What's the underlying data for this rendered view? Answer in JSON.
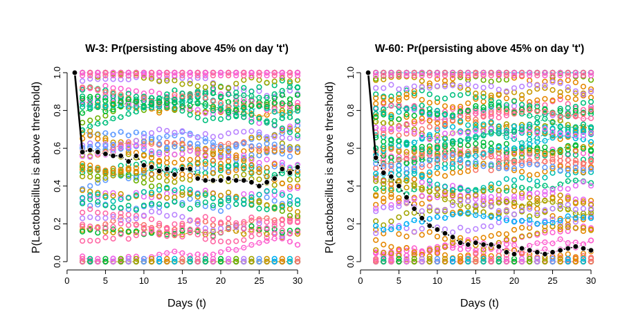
{
  "chart_data": [
    {
      "type": "scatter",
      "title": "W-3: Pr(persisting above 45% on day 't')",
      "xlabel": "Days (t)",
      "ylabel": "P(Lactobacillus is above threshold)",
      "xlim": [
        0,
        30
      ],
      "ylim": [
        0,
        1
      ],
      "xticks": [
        "0",
        "5",
        "10",
        "15",
        "20",
        "25",
        "30"
      ],
      "yticks": [
        "0.0",
        "0.2",
        "0.4",
        "0.6",
        "0.8",
        "1.0"
      ],
      "grid": false,
      "legend": "none",
      "highlight_series": {
        "x": [
          1,
          2,
          3,
          4,
          5,
          6,
          7,
          8,
          9,
          10,
          11,
          12,
          13,
          14,
          15,
          16,
          17,
          18,
          19,
          20,
          21,
          22,
          23,
          24,
          25,
          26,
          27,
          28,
          29,
          30
        ],
        "y": [
          1.0,
          0.58,
          0.59,
          0.58,
          0.57,
          0.56,
          0.56,
          0.53,
          0.56,
          0.51,
          0.5,
          0.48,
          0.49,
          0.46,
          0.49,
          0.49,
          0.44,
          0.43,
          0.43,
          0.43,
          0.44,
          0.43,
          0.43,
          0.42,
          0.4,
          0.42,
          0.44,
          0.49,
          0.47,
          0.5
        ]
      },
      "seed": 3
    },
    {
      "type": "scatter",
      "title": "W-60: Pr(persisting above 45% on day 't')",
      "xlabel": "Days (t)",
      "ylabel": "P(Lactobacillus is above threshold)",
      "xlim": [
        0,
        30
      ],
      "ylim": [
        0,
        1
      ],
      "xticks": [
        "0",
        "5",
        "10",
        "15",
        "20",
        "25",
        "30"
      ],
      "yticks": [
        "0.0",
        "0.2",
        "0.4",
        "0.6",
        "0.8",
        "1.0"
      ],
      "grid": false,
      "legend": "none",
      "highlight_series": {
        "x": [
          1,
          2,
          3,
          4,
          5,
          6,
          7,
          8,
          9,
          10,
          11,
          12,
          13,
          14,
          15,
          16,
          17,
          18,
          19,
          20,
          21,
          22,
          23,
          24,
          25,
          26,
          27,
          28,
          29,
          30
        ],
        "y": [
          1.0,
          0.55,
          0.47,
          0.45,
          0.4,
          0.34,
          0.28,
          0.23,
          0.19,
          0.17,
          0.15,
          0.13,
          0.1,
          0.09,
          0.1,
          0.09,
          0.09,
          0.08,
          0.05,
          0.04,
          0.07,
          0.06,
          0.05,
          0.04,
          0.05,
          0.06,
          0.07,
          0.08,
          0.07,
          0.06
        ]
      },
      "seed": 60
    }
  ],
  "colors": {
    "palette": [
      "#F8766D",
      "#E58700",
      "#C99800",
      "#A3A500",
      "#6BB100",
      "#00BA38",
      "#00BF7D",
      "#00C0AF",
      "#00BCD8",
      "#00B0F6",
      "#619CFF",
      "#B983FF",
      "#E76BF3",
      "#FD61D1",
      "#FF67A4"
    ],
    "highlight": "#000000",
    "axis": "#000000"
  }
}
